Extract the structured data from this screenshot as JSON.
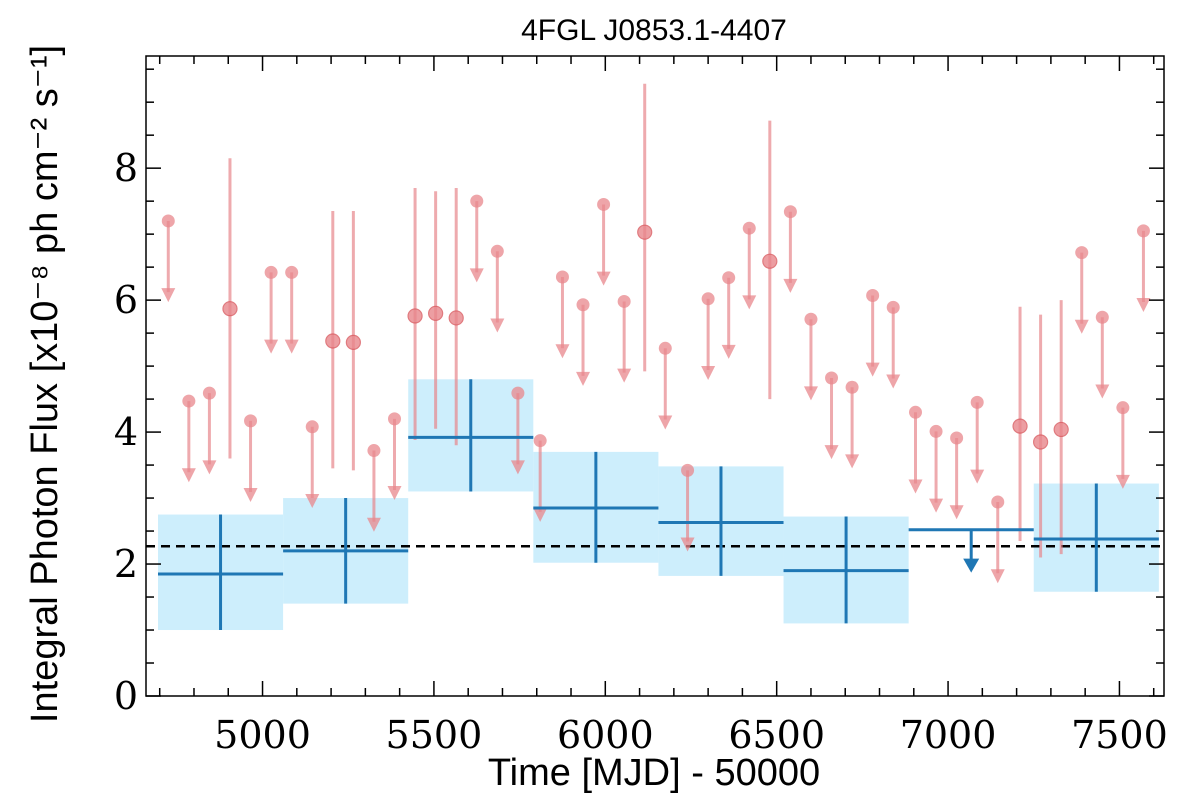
{
  "chart_data": {
    "type": "scatter",
    "title": "4FGL J0853.1-4407",
    "xlabel": "Time [MJD] - 50000",
    "ylabel": "Integral Photon Flux [x10⁻⁸ ph cm⁻² s⁻¹]",
    "xlim": [
      4660,
      7630
    ],
    "ylim": [
      0,
      9.7
    ],
    "xticks": [
      5000,
      5500,
      6000,
      6500,
      7000,
      7500
    ],
    "yticks": [
      0,
      2,
      4,
      6,
      8
    ],
    "grid": false,
    "mean_flux": 2.27,
    "colors": {
      "short_bin": "#e8878c",
      "long_bin": "#1f77b4",
      "long_bin_band": "#cdeefc",
      "mean_line": "#000000"
    },
    "long_bins": [
      {
        "x0": 4695,
        "x1": 5060,
        "y": 1.85,
        "lo": 1.0,
        "hi": 2.75,
        "ul": false
      },
      {
        "x0": 5060,
        "x1": 5425,
        "y": 2.2,
        "lo": 1.4,
        "hi": 3.0,
        "ul": false
      },
      {
        "x0": 5425,
        "x1": 5790,
        "y": 3.92,
        "lo": 3.1,
        "hi": 4.8,
        "ul": false
      },
      {
        "x0": 5790,
        "x1": 6155,
        "y": 2.85,
        "lo": 2.02,
        "hi": 3.7,
        "ul": false
      },
      {
        "x0": 6155,
        "x1": 6520,
        "y": 2.63,
        "lo": 1.82,
        "hi": 3.48,
        "ul": false
      },
      {
        "x0": 6520,
        "x1": 6885,
        "y": 1.9,
        "lo": 1.1,
        "hi": 2.72,
        "ul": false
      },
      {
        "x0": 6885,
        "x1": 7250,
        "y": 2.52,
        "ul": true
      },
      {
        "x0": 7250,
        "x1": 7615,
        "y": 2.38,
        "lo": 1.58,
        "hi": 3.22,
        "ul": false
      }
    ],
    "short_bins": [
      {
        "x": 4725,
        "y": 7.2,
        "ul": true
      },
      {
        "x": 4785,
        "y": 4.47,
        "ul": true
      },
      {
        "x": 4845,
        "y": 4.59,
        "ul": true
      },
      {
        "x": 4905,
        "y": 5.87,
        "lo": 3.6,
        "hi": 8.15,
        "ul": false
      },
      {
        "x": 4965,
        "y": 4.17,
        "ul": true
      },
      {
        "x": 5025,
        "y": 6.42,
        "ul": true
      },
      {
        "x": 5085,
        "y": 6.42,
        "ul": true
      },
      {
        "x": 5145,
        "y": 4.08,
        "ul": true
      },
      {
        "x": 5205,
        "y": 5.38,
        "lo": 3.45,
        "hi": 7.35,
        "ul": false
      },
      {
        "x": 5265,
        "y": 5.36,
        "lo": 3.42,
        "hi": 7.35,
        "ul": false
      },
      {
        "x": 5325,
        "y": 3.72,
        "ul": true
      },
      {
        "x": 5385,
        "y": 4.2,
        "ul": true
      },
      {
        "x": 5445,
        "y": 5.76,
        "lo": 3.88,
        "hi": 7.7,
        "ul": false
      },
      {
        "x": 5505,
        "y": 5.8,
        "lo": 4.05,
        "hi": 7.65,
        "ul": false
      },
      {
        "x": 5565,
        "y": 5.73,
        "lo": 3.8,
        "hi": 7.7,
        "ul": false
      },
      {
        "x": 5625,
        "y": 7.5,
        "ul": true
      },
      {
        "x": 5685,
        "y": 6.74,
        "ul": true
      },
      {
        "x": 5745,
        "y": 4.59,
        "ul": true
      },
      {
        "x": 5810,
        "y": 3.87,
        "ul": true
      },
      {
        "x": 5875,
        "y": 6.35,
        "ul": true
      },
      {
        "x": 5935,
        "y": 5.93,
        "ul": true
      },
      {
        "x": 5995,
        "y": 7.45,
        "ul": true
      },
      {
        "x": 6055,
        "y": 5.98,
        "ul": true
      },
      {
        "x": 6115,
        "y": 7.03,
        "lo": 4.92,
        "hi": 9.28,
        "ul": false
      },
      {
        "x": 6175,
        "y": 5.27,
        "ul": true
      },
      {
        "x": 6240,
        "y": 3.42,
        "ul": true
      },
      {
        "x": 6300,
        "y": 6.02,
        "ul": true
      },
      {
        "x": 6360,
        "y": 6.34,
        "ul": true
      },
      {
        "x": 6420,
        "y": 7.09,
        "ul": true
      },
      {
        "x": 6480,
        "y": 6.59,
        "lo": 4.5,
        "hi": 8.72,
        "ul": false
      },
      {
        "x": 6540,
        "y": 7.34,
        "ul": true
      },
      {
        "x": 6600,
        "y": 5.71,
        "ul": true
      },
      {
        "x": 6660,
        "y": 4.82,
        "ul": true
      },
      {
        "x": 6720,
        "y": 4.68,
        "ul": true
      },
      {
        "x": 6780,
        "y": 6.07,
        "ul": true
      },
      {
        "x": 6840,
        "y": 5.89,
        "ul": true
      },
      {
        "x": 6905,
        "y": 4.3,
        "ul": true
      },
      {
        "x": 6965,
        "y": 4.01,
        "ul": true
      },
      {
        "x": 7025,
        "y": 3.91,
        "ul": true
      },
      {
        "x": 7085,
        "y": 4.45,
        "ul": true
      },
      {
        "x": 7145,
        "y": 2.94,
        "ul": true
      },
      {
        "x": 7210,
        "y": 4.09,
        "lo": 2.35,
        "hi": 5.9,
        "ul": false
      },
      {
        "x": 7270,
        "y": 3.85,
        "lo": 2.1,
        "hi": 5.78,
        "ul": false
      },
      {
        "x": 7330,
        "y": 4.04,
        "lo": 2.15,
        "hi": 6.0,
        "ul": false
      },
      {
        "x": 7390,
        "y": 6.72,
        "ul": true
      },
      {
        "x": 7450,
        "y": 5.74,
        "ul": true
      },
      {
        "x": 7510,
        "y": 4.37,
        "ul": true
      },
      {
        "x": 7570,
        "y": 7.05,
        "ul": true
      }
    ]
  }
}
